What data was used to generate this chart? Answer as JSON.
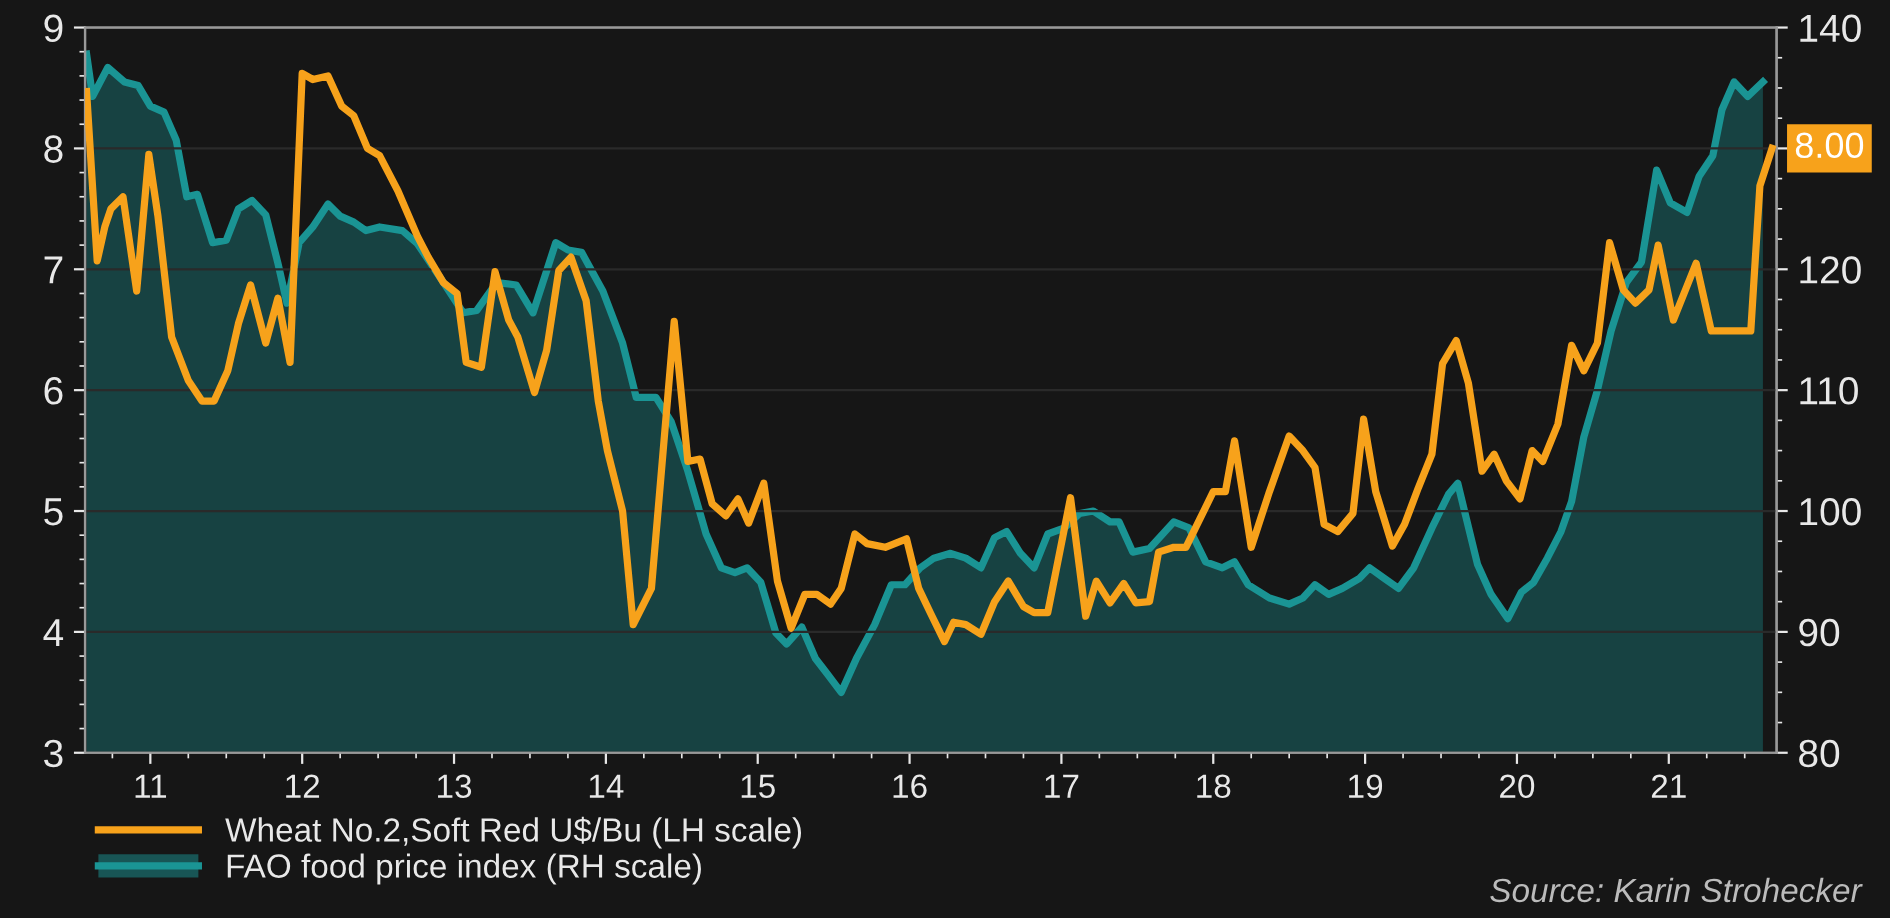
{
  "chart_data": {
    "type": "line",
    "xlim": [
      2010.57,
      2021.71
    ],
    "xticks": [
      {
        "value": 2011,
        "label": "11"
      },
      {
        "value": 2012,
        "label": "12"
      },
      {
        "value": 2013,
        "label": "13"
      },
      {
        "value": 2014,
        "label": "14"
      },
      {
        "value": 2015,
        "label": "15"
      },
      {
        "value": 2016,
        "label": "16"
      },
      {
        "value": 2017,
        "label": "17"
      },
      {
        "value": 2018,
        "label": "18"
      },
      {
        "value": 2019,
        "label": "19"
      },
      {
        "value": 2020,
        "label": "20"
      },
      {
        "value": 2021,
        "label": "21"
      }
    ],
    "ylim": [
      3,
      9
    ],
    "yticks": [
      3,
      4,
      5,
      6,
      7,
      8,
      9
    ],
    "y2lim": [
      80,
      140
    ],
    "y2ticks": [
      80,
      90,
      100,
      110,
      120,
      {
        "value": 130,
        "label": null
      },
      140
    ],
    "grid": "y",
    "legend": "bottom",
    "series": [
      {
        "name": "Wheat No.2,Soft Red U$/Bu (LH scale)",
        "color": "#f7a21b",
        "x": [
          2010.58,
          2010.65,
          2010.7,
          2010.74,
          2010.82,
          2010.91,
          2010.99,
          2011.05,
          2011.14,
          2011.25,
          2011.34,
          2011.42,
          2011.51,
          2011.58,
          2011.66,
          2011.76,
          2011.84,
          2011.92,
          2012.0,
          2012.07,
          2012.17,
          2012.26,
          2012.34,
          2012.43,
          2012.51,
          2012.63,
          2012.76,
          2012.83,
          2012.93,
          2013.02,
          2013.08,
          2013.18,
          2013.27,
          2013.36,
          2013.42,
          2013.53,
          2013.61,
          2013.69,
          2013.77,
          2013.87,
          2013.95,
          2014.01,
          2014.11,
          2014.18,
          2014.3,
          2014.45,
          2014.54,
          2014.62,
          2014.7,
          2014.79,
          2014.87,
          2014.94,
          2015.04,
          2015.13,
          2015.22,
          2015.31,
          2015.39,
          2015.48,
          2015.55,
          2015.64,
          2015.72,
          2015.84,
          2015.98,
          2016.06,
          2016.14,
          2016.23,
          2016.29,
          2016.37,
          2016.47,
          2016.56,
          2016.65,
          2016.75,
          2016.82,
          2016.91,
          2017.06,
          2017.16,
          2017.23,
          2017.32,
          2017.41,
          2017.49,
          2017.58,
          2017.64,
          2017.74,
          2017.82,
          2017.93,
          2018.0,
          2018.08,
          2018.14,
          2018.25,
          2018.37,
          2018.5,
          2018.59,
          2018.67,
          2018.73,
          2018.82,
          2018.92,
          2018.99,
          2019.07,
          2019.18,
          2019.26,
          2019.35,
          2019.44,
          2019.51,
          2019.6,
          2019.68,
          2019.77,
          2019.85,
          2019.93,
          2020.02,
          2020.1,
          2020.17,
          2020.27,
          2020.36,
          2020.44,
          2020.53,
          2020.61,
          2020.7,
          2020.78,
          2020.87,
          2020.93,
          2021.03,
          2021.18,
          2021.28,
          2021.54,
          2021.6,
          2021.68
        ],
        "values": [
          8.47,
          7.07,
          7.35,
          7.5,
          7.6,
          6.82,
          7.95,
          7.44,
          6.44,
          6.08,
          5.91,
          5.91,
          6.16,
          6.55,
          6.87,
          6.39,
          6.76,
          6.23,
          8.62,
          8.57,
          8.6,
          8.35,
          8.27,
          8.0,
          7.94,
          7.65,
          7.27,
          7.1,
          6.89,
          6.8,
          6.23,
          6.19,
          6.98,
          6.58,
          6.44,
          5.98,
          6.33,
          6.99,
          7.1,
          6.74,
          5.91,
          5.5,
          5.0,
          4.06,
          4.36,
          6.57,
          5.41,
          5.43,
          5.06,
          4.96,
          5.1,
          4.9,
          5.23,
          4.42,
          4.03,
          4.31,
          4.31,
          4.23,
          4.36,
          4.81,
          4.73,
          4.7,
          4.77,
          4.36,
          4.15,
          3.92,
          4.08,
          4.06,
          3.98,
          4.25,
          4.42,
          4.21,
          4.16,
          4.16,
          5.11,
          4.13,
          4.42,
          4.24,
          4.4,
          4.24,
          4.25,
          4.66,
          4.7,
          4.7,
          4.98,
          5.16,
          5.16,
          5.58,
          4.7,
          5.16,
          5.62,
          5.5,
          5.36,
          4.89,
          4.83,
          4.98,
          5.76,
          5.16,
          4.71,
          4.89,
          5.19,
          5.47,
          6.22,
          6.41,
          6.06,
          5.33,
          5.47,
          5.25,
          5.1,
          5.5,
          5.41,
          5.72,
          6.37,
          6.16,
          6.39,
          7.22,
          6.83,
          6.72,
          6.83,
          7.2,
          6.58,
          7.05,
          6.49,
          6.49,
          7.69,
          8.0
        ]
      },
      {
        "name": "FAO food price index (RH scale)",
        "type": "area",
        "axis": "y2",
        "color": "#1a9494",
        "x": [
          2010.58,
          2010.62,
          2010.72,
          2010.83,
          2010.92,
          2011.0,
          2011.09,
          2011.17,
          2011.24,
          2011.31,
          2011.41,
          2011.5,
          2011.58,
          2011.67,
          2011.76,
          2011.84,
          2011.9,
          2011.98,
          2012.07,
          2012.17,
          2012.25,
          2012.34,
          2012.42,
          2012.51,
          2012.66,
          2012.76,
          2012.93,
          2013.06,
          2013.15,
          2013.28,
          2013.41,
          2013.52,
          2013.67,
          2013.75,
          2013.84,
          2013.98,
          2014.11,
          2014.2,
          2014.33,
          2014.43,
          2014.54,
          2014.66,
          2014.76,
          2014.85,
          2014.93,
          2015.02,
          2015.12,
          2015.19,
          2015.29,
          2015.38,
          2015.46,
          2015.55,
          2015.65,
          2015.77,
          2015.88,
          2015.97,
          2016.07,
          2016.16,
          2016.27,
          2016.37,
          2016.47,
          2016.56,
          2016.64,
          2016.73,
          2016.82,
          2016.91,
          2017.02,
          2017.12,
          2017.21,
          2017.32,
          2017.38,
          2017.47,
          2017.58,
          2017.74,
          2017.84,
          2017.95,
          2018.06,
          2018.14,
          2018.23,
          2018.37,
          2018.5,
          2018.59,
          2018.67,
          2018.76,
          2018.85,
          2018.96,
          2019.03,
          2019.13,
          2019.22,
          2019.32,
          2019.44,
          2019.55,
          2019.61,
          2019.74,
          2019.83,
          2019.94,
          2020.03,
          2020.11,
          2020.2,
          2020.29,
          2020.36,
          2020.44,
          2020.53,
          2020.62,
          2020.72,
          2020.82,
          2020.92,
          2021.01,
          2021.12,
          2021.2,
          2021.29,
          2021.35,
          2021.43,
          2021.52,
          2021.62
        ],
        "values": [
          137.8,
          134.3,
          136.7,
          135.5,
          135.2,
          133.5,
          133.0,
          130.7,
          126.0,
          126.2,
          122.2,
          122.4,
          125.0,
          125.7,
          124.5,
          120.5,
          117.2,
          122.2,
          123.5,
          125.4,
          124.4,
          123.9,
          123.2,
          123.5,
          123.2,
          122.1,
          118.9,
          116.4,
          116.6,
          118.9,
          118.7,
          116.4,
          122.2,
          121.6,
          121.4,
          118.2,
          113.9,
          109.4,
          109.4,
          107.4,
          103.3,
          98.1,
          95.3,
          94.9,
          95.3,
          94.1,
          89.9,
          89.0,
          90.4,
          87.8,
          86.5,
          85.0,
          87.8,
          90.6,
          93.9,
          93.9,
          95.3,
          96.1,
          96.5,
          96.1,
          95.3,
          97.8,
          98.3,
          96.5,
          95.3,
          98.1,
          98.6,
          99.8,
          100.0,
          99.1,
          99.1,
          96.6,
          96.9,
          99.1,
          98.6,
          95.8,
          95.3,
          95.8,
          93.9,
          92.8,
          92.3,
          92.8,
          93.9,
          93.1,
          93.6,
          94.4,
          95.3,
          94.4,
          93.6,
          95.3,
          98.6,
          101.4,
          102.3,
          95.6,
          93.1,
          91.1,
          93.3,
          94.1,
          96.1,
          98.3,
          100.8,
          106.1,
          110.0,
          114.9,
          118.9,
          120.6,
          128.2,
          125.5,
          124.7,
          127.7,
          129.4,
          133.2,
          135.5,
          134.3,
          135.5
        ]
      }
    ],
    "annotations": [
      {
        "text": "8.00",
        "x": 2021.68,
        "y": 8.0
      },
      "Source: Karin Strohecker"
    ]
  }
}
